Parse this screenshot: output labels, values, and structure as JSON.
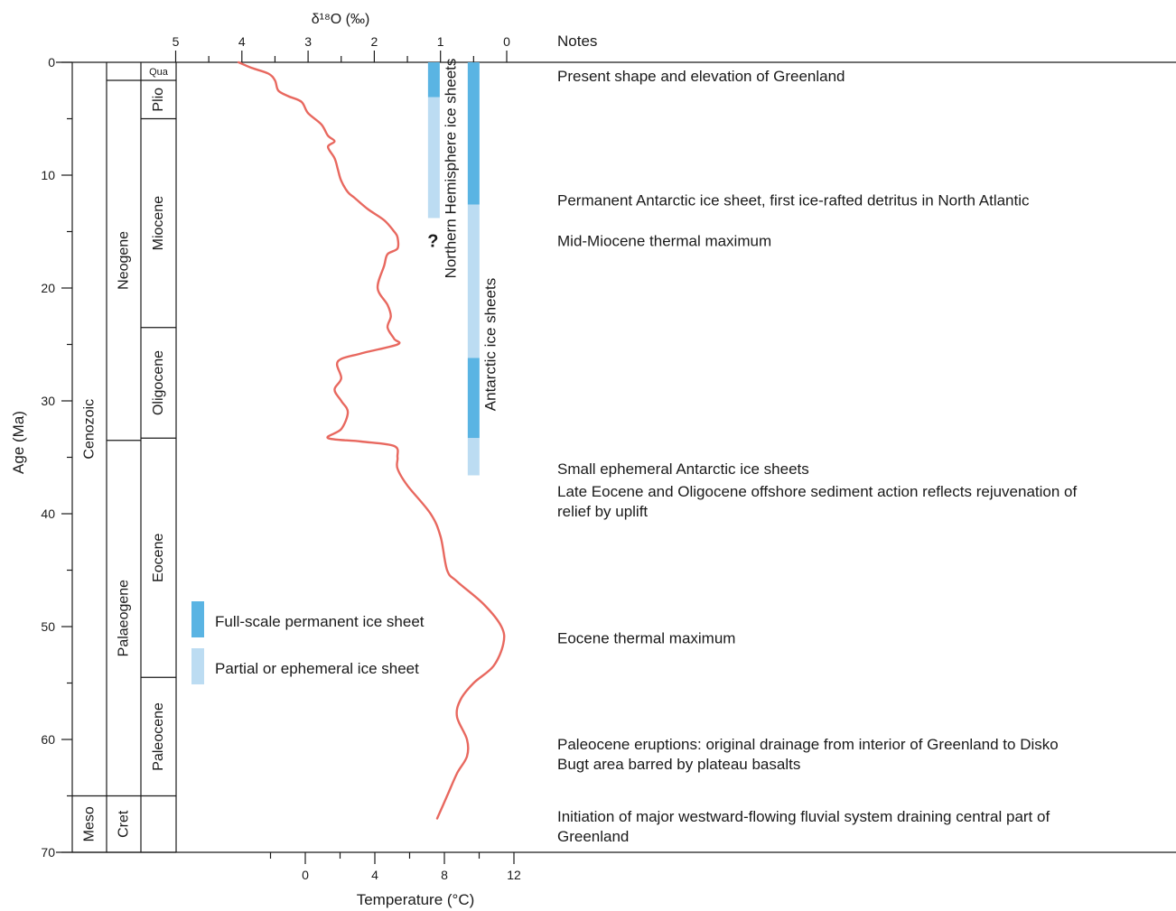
{
  "chart_data": {
    "type": "line",
    "yaxis": {
      "label": "Age (Ma)",
      "range": [
        0,
        70
      ],
      "ticks": [
        0,
        10,
        20,
        30,
        40,
        50,
        60,
        70
      ],
      "inverted": true
    },
    "top_axis": {
      "label": "δ¹⁸O (‰)",
      "ticks": [
        5,
        4,
        3,
        2,
        1,
        0
      ],
      "reversed": true
    },
    "bottom_axis": {
      "label": "Temperature (°C)",
      "ticks": [
        0,
        4,
        8,
        12
      ],
      "range": [
        -2,
        12
      ]
    },
    "series": [
      {
        "color": "#e8685f",
        "points": [
          {
            "age": 0.0,
            "d18O": 4.05
          },
          {
            "age": 0.5,
            "d18O": 3.85
          },
          {
            "age": 1.0,
            "d18O": 3.6
          },
          {
            "age": 1.6,
            "d18O": 3.5
          },
          {
            "age": 2.5,
            "d18O": 3.45
          },
          {
            "age": 3.0,
            "d18O": 3.3
          },
          {
            "age": 3.5,
            "d18O": 3.1
          },
          {
            "age": 4.5,
            "d18O": 3.0
          },
          {
            "age": 5.5,
            "d18O": 2.8
          },
          {
            "age": 6.5,
            "d18O": 2.7
          },
          {
            "age": 7.0,
            "d18O": 2.6
          },
          {
            "age": 7.5,
            "d18O": 2.7
          },
          {
            "age": 8.5,
            "d18O": 2.6
          },
          {
            "age": 9.5,
            "d18O": 2.55
          },
          {
            "age": 10.5,
            "d18O": 2.5
          },
          {
            "age": 11.5,
            "d18O": 2.4
          },
          {
            "age": 12.0,
            "d18O": 2.3
          },
          {
            "age": 13.0,
            "d18O": 2.1
          },
          {
            "age": 14.0,
            "d18O": 1.85
          },
          {
            "age": 15.0,
            "d18O": 1.7
          },
          {
            "age": 15.5,
            "d18O": 1.65
          },
          {
            "age": 16.5,
            "d18O": 1.65
          },
          {
            "age": 17.0,
            "d18O": 1.8
          },
          {
            "age": 18.0,
            "d18O": 1.85
          },
          {
            "age": 20.0,
            "d18O": 1.95
          },
          {
            "age": 21.5,
            "d18O": 1.8
          },
          {
            "age": 22.5,
            "d18O": 1.75
          },
          {
            "age": 23.5,
            "d18O": 1.8
          },
          {
            "age": 24.5,
            "d18O": 1.7
          },
          {
            "age": 25.0,
            "d18O": 1.65
          },
          {
            "age": 25.8,
            "d18O": 2.2
          },
          {
            "age": 26.5,
            "d18O": 2.55
          },
          {
            "age": 28.0,
            "d18O": 2.5
          },
          {
            "age": 29.0,
            "d18O": 2.6
          },
          {
            "age": 30.0,
            "d18O": 2.5
          },
          {
            "age": 31.0,
            "d18O": 2.4
          },
          {
            "age": 32.5,
            "d18O": 2.5
          },
          {
            "age": 33.3,
            "d18O": 2.7
          },
          {
            "age": 33.6,
            "d18O": 2.2
          },
          {
            "age": 34.0,
            "d18O": 1.7
          },
          {
            "age": 35.0,
            "d18O": 1.65
          },
          {
            "age": 36.0,
            "d18O": 1.65
          },
          {
            "age": 37.5,
            "d18O": 1.5
          },
          {
            "age": 40.0,
            "d18O": 1.15
          },
          {
            "age": 42.0,
            "d18O": 1.0
          },
          {
            "age": 45.0,
            "d18O": 0.9
          },
          {
            "age": 46.0,
            "d18O": 0.75
          },
          {
            "age": 48.0,
            "d18O": 0.35
          },
          {
            "age": 50.0,
            "d18O": 0.08
          },
          {
            "age": 51.5,
            "d18O": 0.05
          },
          {
            "age": 53.5,
            "d18O": 0.2
          },
          {
            "age": 55.0,
            "d18O": 0.5
          },
          {
            "age": 56.5,
            "d18O": 0.7
          },
          {
            "age": 58.0,
            "d18O": 0.75
          },
          {
            "age": 60.0,
            "d18O": 0.6
          },
          {
            "age": 61.5,
            "d18O": 0.6
          },
          {
            "age": 63.0,
            "d18O": 0.75
          },
          {
            "age": 65.0,
            "d18O": 0.9
          },
          {
            "age": 67.0,
            "d18O": 1.05
          }
        ]
      }
    ],
    "stratigraphy": {
      "eras": [
        {
          "name": "Cenozoic",
          "from": 0,
          "to": 65
        },
        {
          "name": "Meso",
          "from": 65,
          "to": 70
        }
      ],
      "periods": [
        {
          "name": "",
          "from": 0,
          "to": 1.6
        },
        {
          "name": "Neogene",
          "from": 1.6,
          "to": 33.5
        },
        {
          "name": "Palaeogene",
          "from": 33.5,
          "to": 65
        },
        {
          "name": "Cret",
          "from": 65,
          "to": 70
        }
      ],
      "epochs": [
        {
          "name": "Qua",
          "from": 0,
          "to": 1.6
        },
        {
          "name": "Plio",
          "from": 1.6,
          "to": 5
        },
        {
          "name": "Miocene",
          "from": 5,
          "to": 23.5
        },
        {
          "name": "Oligocene",
          "from": 23.5,
          "to": 33.3
        },
        {
          "name": "Eocene",
          "from": 33.3,
          "to": 54.5
        },
        {
          "name": "Paleocene",
          "from": 54.5,
          "to": 65
        },
        {
          "name": "",
          "from": 65,
          "to": 70
        }
      ]
    },
    "ice_sheets": [
      {
        "label": "Northern Hemisphere ice sheets",
        "d18O": 1.1,
        "segments": [
          {
            "from": 0,
            "to": 3.1,
            "kind": "full"
          },
          {
            "from": 3.1,
            "to": 13.8,
            "kind": "partial"
          }
        ],
        "question_mark_age": 15.8
      },
      {
        "label": "Antarctic ice sheets",
        "d18O": 0.5,
        "segments": [
          {
            "from": 0,
            "to": 12.6,
            "kind": "full"
          },
          {
            "from": 12.6,
            "to": 26.2,
            "kind": "partial"
          },
          {
            "from": 26.2,
            "to": 33.3,
            "kind": "full"
          },
          {
            "from": 33.3,
            "to": 36.6,
            "kind": "partial"
          }
        ]
      }
    ],
    "legend": {
      "placement": "lower-left",
      "items": [
        {
          "kind": "full",
          "label": "Full-scale permanent ice sheet"
        },
        {
          "kind": "partial",
          "label": "Partial or ephemeral ice sheet"
        }
      ]
    },
    "notes_header": "Notes",
    "notes": [
      {
        "age": 1.2,
        "lines": [
          "Present shape and elevation of Greenland"
        ]
      },
      {
        "age": 12.2,
        "lines": [
          "Permanent  Antarctic ice sheet, first ice-rafted detritus in North Atlantic"
        ]
      },
      {
        "age": 15.8,
        "lines": [
          "Mid-Miocene thermal maximum"
        ]
      },
      {
        "age": 36.0,
        "lines": [
          "Small ephemeral Antarctic ice sheets"
        ]
      },
      {
        "age": 38.0,
        "lines": [
          "Late Eocene and Oligocene offshore sediment action reflects rejuvenation of",
          "relief by uplift"
        ]
      },
      {
        "age": 51.0,
        "lines": [
          "Eocene thermal maximum"
        ]
      },
      {
        "age": 60.4,
        "lines": [
          "Paleocene eruptions: original drainage from interior of Greenland to Disko",
          "Bugt area barred by plateau basalts"
        ]
      },
      {
        "age": 66.8,
        "lines": [
          "Initiation of major westward-flowing fluvial system draining central part of",
          "Greenland"
        ]
      }
    ],
    "colors": {
      "full": "#5ab4e3",
      "partial": "#bcdcf2",
      "curve": "#e8685f"
    }
  }
}
